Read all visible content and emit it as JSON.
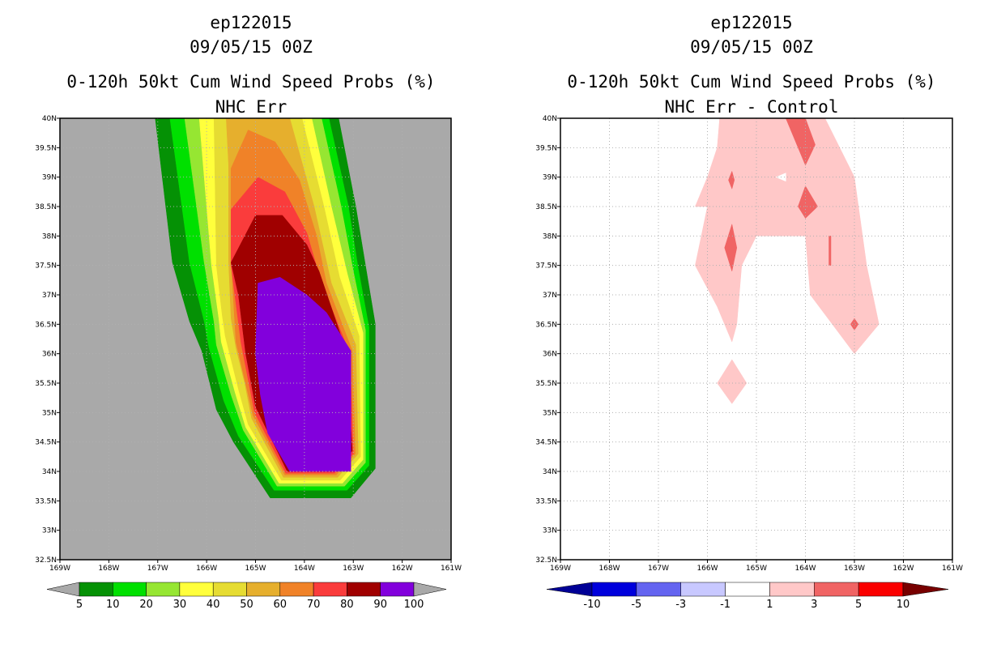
{
  "chart_data": [
    {
      "type": "heatmap",
      "title_lines": [
        "ep122015",
        "09/05/15 00Z",
        "0-120h 50kt Cum Wind Speed Probs (%)",
        "NHC Err"
      ],
      "xlabel": "",
      "ylabel": "",
      "xlim": [
        -169,
        -161
      ],
      "ylim": [
        32.5,
        40
      ],
      "x_tick_labels": [
        "169W",
        "168W",
        "167W",
        "166W",
        "165W",
        "164W",
        "163W",
        "162W",
        "161W"
      ],
      "y_tick_labels": [
        "32.5N",
        "33N",
        "33.5N",
        "34N",
        "34.5N",
        "35N",
        "35.5N",
        "36N",
        "36.5N",
        "37N",
        "37.5N",
        "38N",
        "38.5N",
        "39N",
        "39.5N",
        "40N"
      ],
      "background_color": "#a9a9a9",
      "colorbar": {
        "labels": [
          "5",
          "10",
          "20",
          "30",
          "40",
          "50",
          "60",
          "70",
          "80",
          "90",
          "100"
        ],
        "colors": [
          "#059105",
          "#00e000",
          "#96e632",
          "#ffff3c",
          "#e6dc32",
          "#e6af2d",
          "#f08228",
          "#fa3c3c",
          "#a00000",
          "#8200dc"
        ],
        "under_color": "#a9a9a9",
        "over_color": "#a9a9a9"
      },
      "contour_levels": [
        {
          "level": 5,
          "color": "#059105",
          "polygon": [
            [
              -167.05,
              40
            ],
            [
              -166.7,
              37.55
            ],
            [
              -166.35,
              36.55
            ],
            [
              -166.1,
              36.05
            ],
            [
              -165.8,
              35.05
            ],
            [
              -165.45,
              34.5
            ],
            [
              -164.7,
              33.55
            ],
            [
              -163.05,
              33.55
            ],
            [
              -162.55,
              34.05
            ],
            [
              -162.55,
              36.5
            ],
            [
              -162.75,
              37.5
            ],
            [
              -162.95,
              38.5
            ],
            [
              -163.3,
              40
            ]
          ]
        },
        {
          "level": 10,
          "color": "#00e000",
          "polygon": [
            [
              -166.75,
              40
            ],
            [
              -166.35,
              37.55
            ],
            [
              -166.05,
              36.55
            ],
            [
              -165.95,
              36.1
            ],
            [
              -165.65,
              35.2
            ],
            [
              -165.35,
              34.6
            ],
            [
              -164.62,
              33.68
            ],
            [
              -163.13,
              33.68
            ],
            [
              -162.68,
              34.1
            ],
            [
              -162.68,
              36.45
            ],
            [
              -162.9,
              37.45
            ],
            [
              -163.1,
              38.5
            ],
            [
              -163.5,
              40
            ]
          ]
        },
        {
          "level": 20,
          "color": "#96e632",
          "polygon": [
            [
              -166.45,
              40
            ],
            [
              -166.05,
              37.55
            ],
            [
              -165.85,
              36.55
            ],
            [
              -165.8,
              36.15
            ],
            [
              -165.5,
              35.3
            ],
            [
              -165.25,
              34.7
            ],
            [
              -164.56,
              33.75
            ],
            [
              -163.18,
              33.75
            ],
            [
              -162.75,
              34.15
            ],
            [
              -162.75,
              36.4
            ],
            [
              -163.0,
              37.4
            ],
            [
              -163.25,
              38.5
            ],
            [
              -163.65,
              40
            ]
          ]
        },
        {
          "level": 30,
          "color": "#ffff3c",
          "polygon": [
            [
              -166.15,
              40
            ],
            [
              -165.9,
              37.5
            ],
            [
              -165.75,
              36.6
            ],
            [
              -165.7,
              36.2
            ],
            [
              -165.42,
              35.35
            ],
            [
              -165.2,
              34.75
            ],
            [
              -164.52,
              33.8
            ],
            [
              -163.22,
              33.8
            ],
            [
              -162.8,
              34.2
            ],
            [
              -162.8,
              36.35
            ],
            [
              -163.12,
              37.35
            ],
            [
              -163.45,
              38.5
            ],
            [
              -163.85,
              40
            ]
          ]
        },
        {
          "level": 40,
          "color": "#e6dc32",
          "polygon": [
            [
              -165.85,
              40
            ],
            [
              -165.8,
              37.5
            ],
            [
              -165.68,
              36.65
            ],
            [
              -165.62,
              36.3
            ],
            [
              -165.35,
              35.4
            ],
            [
              -165.15,
              34.8
            ],
            [
              -164.47,
              33.85
            ],
            [
              -163.27,
              33.85
            ],
            [
              -162.85,
              34.25
            ],
            [
              -162.88,
              36.3
            ],
            [
              -163.28,
              37.3
            ],
            [
              -163.6,
              38.5
            ],
            [
              -164.05,
              40
            ]
          ]
        },
        {
          "level": 50,
          "color": "#e6af2d",
          "polygon": [
            [
              -165.6,
              40
            ],
            [
              -165.55,
              39.2
            ],
            [
              -165.55,
              37.55
            ],
            [
              -165.5,
              36.6
            ],
            [
              -165.4,
              36.1
            ],
            [
              -165.22,
              35.5
            ],
            [
              -165.08,
              34.9
            ],
            [
              -164.43,
              33.9
            ],
            [
              -163.32,
              33.9
            ],
            [
              -162.9,
              34.3
            ],
            [
              -162.95,
              36.15
            ],
            [
              -163.45,
              37.2
            ],
            [
              -163.8,
              38.5
            ],
            [
              -164.3,
              40
            ]
          ]
        },
        {
          "level": 60,
          "color": "#f08228",
          "polygon": [
            [
              -165.5,
              39.15
            ],
            [
              -165.15,
              39.8
            ],
            [
              -164.6,
              39.6
            ],
            [
              -164.1,
              38.95
            ],
            [
              -163.75,
              38.0
            ],
            [
              -163.55,
              37.2
            ],
            [
              -163.02,
              36.05
            ],
            [
              -162.96,
              34.3
            ],
            [
              -163.35,
              33.94
            ],
            [
              -164.4,
              33.94
            ],
            [
              -165.05,
              34.95
            ],
            [
              -165.4,
              36.2
            ],
            [
              -165.5,
              37.6
            ]
          ]
        },
        {
          "level": 70,
          "color": "#fa3c3c",
          "polygon": [
            [
              -165.5,
              38.45
            ],
            [
              -164.95,
              39.0
            ],
            [
              -164.4,
              38.75
            ],
            [
              -163.95,
              38.05
            ],
            [
              -163.65,
              37.2
            ],
            [
              -163.07,
              36.0
            ],
            [
              -163.0,
              34.3
            ],
            [
              -163.38,
              33.97
            ],
            [
              -164.38,
              33.97
            ],
            [
              -165.02,
              35.0
            ],
            [
              -165.3,
              36.2
            ],
            [
              -165.5,
              37.5
            ]
          ]
        },
        {
          "level": 80,
          "color": "#a00000",
          "polygon": [
            [
              -165.5,
              37.55
            ],
            [
              -165.0,
              38.35
            ],
            [
              -164.45,
              38.35
            ],
            [
              -163.95,
              37.85
            ],
            [
              -163.7,
              37.4
            ],
            [
              -163.15,
              36.05
            ],
            [
              -163.02,
              34.35
            ],
            [
              -163.4,
              34.0
            ],
            [
              -164.35,
              34.0
            ],
            [
              -165.0,
              35.1
            ],
            [
              -165.2,
              36.0
            ],
            [
              -165.35,
              37.0
            ]
          ]
        },
        {
          "level": 90,
          "color": "#8200dc",
          "polygon": [
            [
              -164.95,
              37.2
            ],
            [
              -164.5,
              37.3
            ],
            [
              -163.95,
              37.0
            ],
            [
              -163.55,
              36.7
            ],
            [
              -163.05,
              36.05
            ],
            [
              -163.05,
              34.0
            ],
            [
              -164.3,
              34.0
            ],
            [
              -164.75,
              34.65
            ],
            [
              -164.9,
              35.3
            ],
            [
              -165.0,
              36.0
            ]
          ]
        }
      ]
    },
    {
      "type": "heatmap",
      "title_lines": [
        "ep122015",
        "09/05/15 00Z",
        "0-120h 50kt Cum Wind Speed Probs (%)",
        "NHC Err - Control"
      ],
      "xlabel": "",
      "ylabel": "",
      "xlim": [
        -169,
        -161
      ],
      "ylim": [
        32.5,
        40
      ],
      "x_tick_labels": [
        "169W",
        "168W",
        "167W",
        "166W",
        "165W",
        "164W",
        "163W",
        "162W",
        "161W"
      ],
      "y_tick_labels": [
        "32.5N",
        "33N",
        "33.5N",
        "34N",
        "34.5N",
        "35N",
        "35.5N",
        "36N",
        "36.5N",
        "37N",
        "37.5N",
        "38N",
        "38.5N",
        "39N",
        "39.5N",
        "40N"
      ],
      "background_color": "#ffffff",
      "colorbar": {
        "labels": [
          "-10",
          "-5",
          "-3",
          "-1",
          "1",
          "3",
          "5",
          "10"
        ],
        "colors": [
          "#0000dc",
          "#6464f0",
          "#c8c8ff",
          "#ffffff",
          "#ffc8c8",
          "#f06464",
          "#fa0000"
        ],
        "under_color": "#000096",
        "over_color": "#780000"
      },
      "contour_levels": [
        {
          "level": 1,
          "color": "#ffc8c8",
          "polygon": [
            [
              -165.75,
              40
            ],
            [
              -164.5,
              40
            ],
            [
              -163.6,
              40
            ],
            [
              -163.0,
              39.0
            ],
            [
              -162.75,
              37.5
            ],
            [
              -162.5,
              36.5
            ],
            [
              -163.0,
              36.0
            ],
            [
              -163.9,
              37.0
            ],
            [
              -164.0,
              38.0
            ],
            [
              -164.5,
              38.0
            ],
            [
              -165.0,
              38.0
            ],
            [
              -165.3,
              37.5
            ],
            [
              -165.4,
              36.5
            ],
            [
              -165.5,
              36.2
            ],
            [
              -165.8,
              36.8
            ],
            [
              -166.25,
              37.5
            ],
            [
              -166.0,
              38.5
            ],
            [
              -166.25,
              38.5
            ],
            [
              -166.0,
              39.0
            ],
            [
              -165.8,
              39.5
            ]
          ]
        },
        {
          "level": 1,
          "color": "#ffc8c8",
          "polygon": [
            [
              -165.5,
              35.9
            ],
            [
              -165.2,
              35.5
            ],
            [
              -165.5,
              35.15
            ],
            [
              -165.8,
              35.5
            ]
          ]
        },
        {
          "level": 1,
          "color": "#ffffff",
          "polygon": [
            [
              -164.6,
              39.0
            ],
            [
              -164.4,
              39.07
            ],
            [
              -164.4,
              38.93
            ]
          ]
        },
        {
          "level": 3,
          "color": "#f06464",
          "polygon": [
            [
              -164.4,
              40
            ],
            [
              -164.0,
              40
            ],
            [
              -163.8,
              39.55
            ],
            [
              -164.0,
              39.2
            ]
          ]
        },
        {
          "level": 3,
          "color": "#f06464",
          "polygon": [
            [
              -164.0,
              38.85
            ],
            [
              -163.75,
              38.5
            ],
            [
              -164.0,
              38.3
            ],
            [
              -164.15,
              38.5
            ]
          ]
        },
        {
          "level": 3,
          "color": "#f06464",
          "polygon": [
            [
              -165.5,
              38.2
            ],
            [
              -165.4,
              37.8
            ],
            [
              -165.5,
              37.4
            ],
            [
              -165.65,
              37.8
            ]
          ]
        },
        {
          "level": 3,
          "color": "#f06464",
          "polygon": [
            [
              -165.5,
              39.1
            ],
            [
              -165.45,
              38.95
            ],
            [
              -165.5,
              38.8
            ],
            [
              -165.57,
              38.95
            ]
          ]
        },
        {
          "level": 3,
          "color": "#f06464",
          "polygon": [
            [
              -163.0,
              36.6
            ],
            [
              -162.92,
              36.5
            ],
            [
              -163.0,
              36.4
            ],
            [
              -163.08,
              36.5
            ]
          ]
        },
        {
          "level": 3,
          "color": "#f06464",
          "polygon": [
            [
              -163.52,
              38.0
            ],
            [
              -163.48,
              38.0
            ],
            [
              -163.48,
              37.5
            ],
            [
              -163.52,
              37.5
            ]
          ]
        }
      ]
    }
  ]
}
